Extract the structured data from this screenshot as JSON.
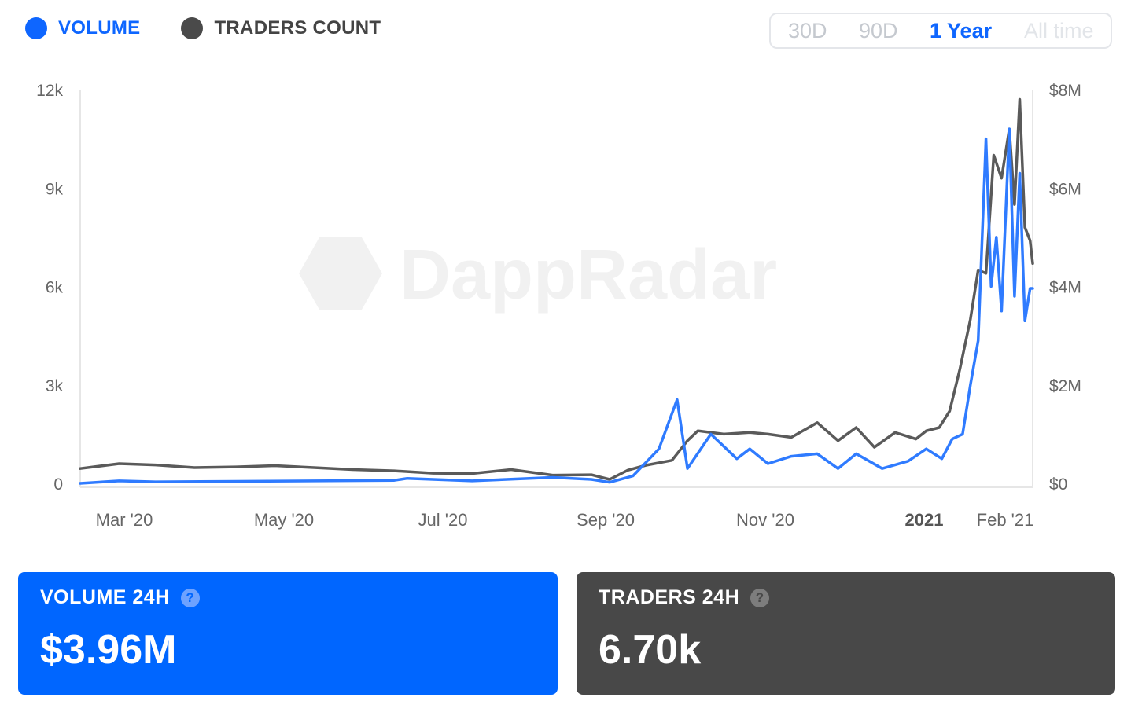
{
  "legend": {
    "volume": {
      "label": "VOLUME",
      "color": "#0e66ff"
    },
    "traders": {
      "label": "TRADERS COUNT",
      "color": "#4a4a4a"
    }
  },
  "range_selector": {
    "options": [
      "30D",
      "90D",
      "1 Year",
      "All time"
    ],
    "selected": "1 Year"
  },
  "watermark": "DappRadar",
  "chart_data": {
    "type": "line",
    "x_labels": [
      "Mar '20",
      "May '20",
      "Jul '20",
      "Sep '20",
      "Nov '20",
      "2021",
      "Feb '21"
    ],
    "y_left_ticks": [
      "0",
      "3k",
      "6k",
      "9k",
      "12k"
    ],
    "y_right_ticks": [
      "$0",
      "$2M",
      "$4M",
      "$6M",
      "$8M"
    ],
    "y_left_range": [
      0,
      12000
    ],
    "y_right_range": [
      0,
      8000000
    ],
    "x_range": [
      "2020-02-10",
      "2021-02-11"
    ],
    "grid": false,
    "series": [
      {
        "name": "TRADERS COUNT",
        "axis": "left",
        "color": "#5a5a5a",
        "points": [
          [
            "2020-02-10",
            450
          ],
          [
            "2020-02-25",
            600
          ],
          [
            "2020-03-10",
            560
          ],
          [
            "2020-03-25",
            480
          ],
          [
            "2020-04-10",
            500
          ],
          [
            "2020-04-25",
            540
          ],
          [
            "2020-05-10",
            480
          ],
          [
            "2020-05-25",
            420
          ],
          [
            "2020-06-10",
            380
          ],
          [
            "2020-06-25",
            310
          ],
          [
            "2020-07-10",
            300
          ],
          [
            "2020-07-25",
            420
          ],
          [
            "2020-08-10",
            250
          ],
          [
            "2020-08-25",
            260
          ],
          [
            "2020-09-01",
            120
          ],
          [
            "2020-09-08",
            400
          ],
          [
            "2020-09-15",
            550
          ],
          [
            "2020-09-25",
            700
          ],
          [
            "2020-10-01",
            1300
          ],
          [
            "2020-10-05",
            1600
          ],
          [
            "2020-10-15",
            1500
          ],
          [
            "2020-10-25",
            1550
          ],
          [
            "2020-11-01",
            1500
          ],
          [
            "2020-11-10",
            1400
          ],
          [
            "2020-11-20",
            1850
          ],
          [
            "2020-11-28",
            1300
          ],
          [
            "2020-12-05",
            1700
          ],
          [
            "2020-12-12",
            1100
          ],
          [
            "2020-12-20",
            1550
          ],
          [
            "2020-12-28",
            1350
          ],
          [
            "2021-01-01",
            1600
          ],
          [
            "2021-01-06",
            1700
          ],
          [
            "2021-01-10",
            2200
          ],
          [
            "2021-01-14",
            3500
          ],
          [
            "2021-01-18",
            5000
          ],
          [
            "2021-01-21",
            6500
          ],
          [
            "2021-01-24",
            6400
          ],
          [
            "2021-01-27",
            10000
          ],
          [
            "2021-01-30",
            9300
          ],
          [
            "2021-02-02",
            10800
          ],
          [
            "2021-02-04",
            8500
          ],
          [
            "2021-02-06",
            11700
          ],
          [
            "2021-02-08",
            7800
          ],
          [
            "2021-02-10",
            7400
          ],
          [
            "2021-02-11",
            6700
          ]
        ]
      },
      {
        "name": "VOLUME",
        "axis": "right",
        "color": "#2f7bff",
        "points": [
          [
            "2020-02-10",
            0
          ],
          [
            "2020-02-25",
            50000
          ],
          [
            "2020-03-10",
            30000
          ],
          [
            "2020-04-10",
            40000
          ],
          [
            "2020-05-10",
            50000
          ],
          [
            "2020-06-10",
            60000
          ],
          [
            "2020-06-15",
            100000
          ],
          [
            "2020-07-10",
            50000
          ],
          [
            "2020-08-10",
            120000
          ],
          [
            "2020-08-25",
            80000
          ],
          [
            "2020-09-01",
            20000
          ],
          [
            "2020-09-10",
            150000
          ],
          [
            "2020-09-20",
            700000
          ],
          [
            "2020-09-27",
            1700000
          ],
          [
            "2020-10-01",
            300000
          ],
          [
            "2020-10-10",
            1000000
          ],
          [
            "2020-10-20",
            500000
          ],
          [
            "2020-10-25",
            700000
          ],
          [
            "2020-11-01",
            400000
          ],
          [
            "2020-11-10",
            550000
          ],
          [
            "2020-11-20",
            600000
          ],
          [
            "2020-11-28",
            300000
          ],
          [
            "2020-12-05",
            600000
          ],
          [
            "2020-12-15",
            300000
          ],
          [
            "2020-12-25",
            450000
          ],
          [
            "2021-01-01",
            700000
          ],
          [
            "2021-01-07",
            500000
          ],
          [
            "2021-01-11",
            900000
          ],
          [
            "2021-01-15",
            1000000
          ],
          [
            "2021-01-18",
            2000000
          ],
          [
            "2021-01-21",
            2900000
          ],
          [
            "2021-01-24",
            7000000
          ],
          [
            "2021-01-26",
            4000000
          ],
          [
            "2021-01-28",
            5000000
          ],
          [
            "2021-01-30",
            3500000
          ],
          [
            "2021-02-02",
            7200000
          ],
          [
            "2021-02-04",
            3800000
          ],
          [
            "2021-02-06",
            6300000
          ],
          [
            "2021-02-08",
            3300000
          ],
          [
            "2021-02-10",
            3960000
          ],
          [
            "2021-02-11",
            3960000
          ]
        ]
      }
    ]
  },
  "cards": {
    "volume": {
      "title": "VOLUME 24H",
      "value": "$3.96M",
      "color": "#0066ff"
    },
    "traders": {
      "title": "TRADERS 24H",
      "value": "6.70k",
      "color": "#484848"
    }
  },
  "help_glyph": "?"
}
